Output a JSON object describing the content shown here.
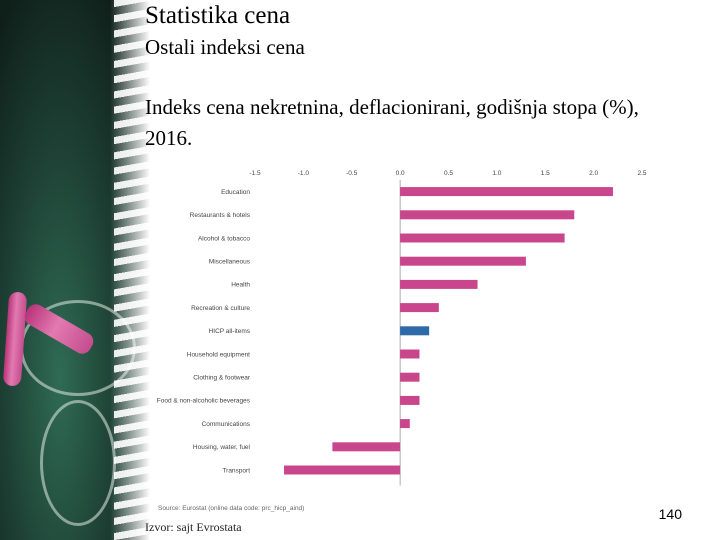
{
  "slide": {
    "title": "Statistika cena",
    "subtitle": "Ostali indeksi cena",
    "heading": "Indeks cena nekretnina, deflacionirani, godišnja stopa (%), 2016.",
    "footer_source": "Izvor: sajt Evrostata",
    "page_number": "140"
  },
  "chart_data": {
    "type": "bar",
    "orientation": "horizontal",
    "categories": [
      "Education",
      "Restaurants & hotels",
      "Alcohol & tobacco",
      "Miscellaneous",
      "Health",
      "Recreation & culture",
      "HICP all-items",
      "Household equipment",
      "Clothing & footwear",
      "Food & non-alcoholic beverages",
      "Communications",
      "Housing, water, fuel",
      "Transport"
    ],
    "values": [
      2.2,
      1.8,
      1.7,
      1.3,
      0.8,
      0.4,
      0.3,
      0.2,
      0.2,
      0.2,
      0.1,
      -0.7,
      -1.2
    ],
    "highlight_category": "HICP all-items",
    "xlim": [
      -1.5,
      2.5
    ],
    "xticks": [
      -1.5,
      -1.0,
      -0.5,
      0.0,
      0.5,
      1.0,
      1.5,
      2.0,
      2.5
    ],
    "xtick_labels": [
      "-1.5",
      "-1.0",
      "-0.5",
      "0.0",
      "0.5",
      "1.0",
      "1.5",
      "2.0",
      "2.5"
    ],
    "source": "Source: Eurostat (online data code: prc_hicp_aind)",
    "colors": {
      "bar": "#c9468c",
      "highlight": "#2f6aa8",
      "axis": "#9a9a9a",
      "text": "#444444"
    },
    "grid": false
  }
}
